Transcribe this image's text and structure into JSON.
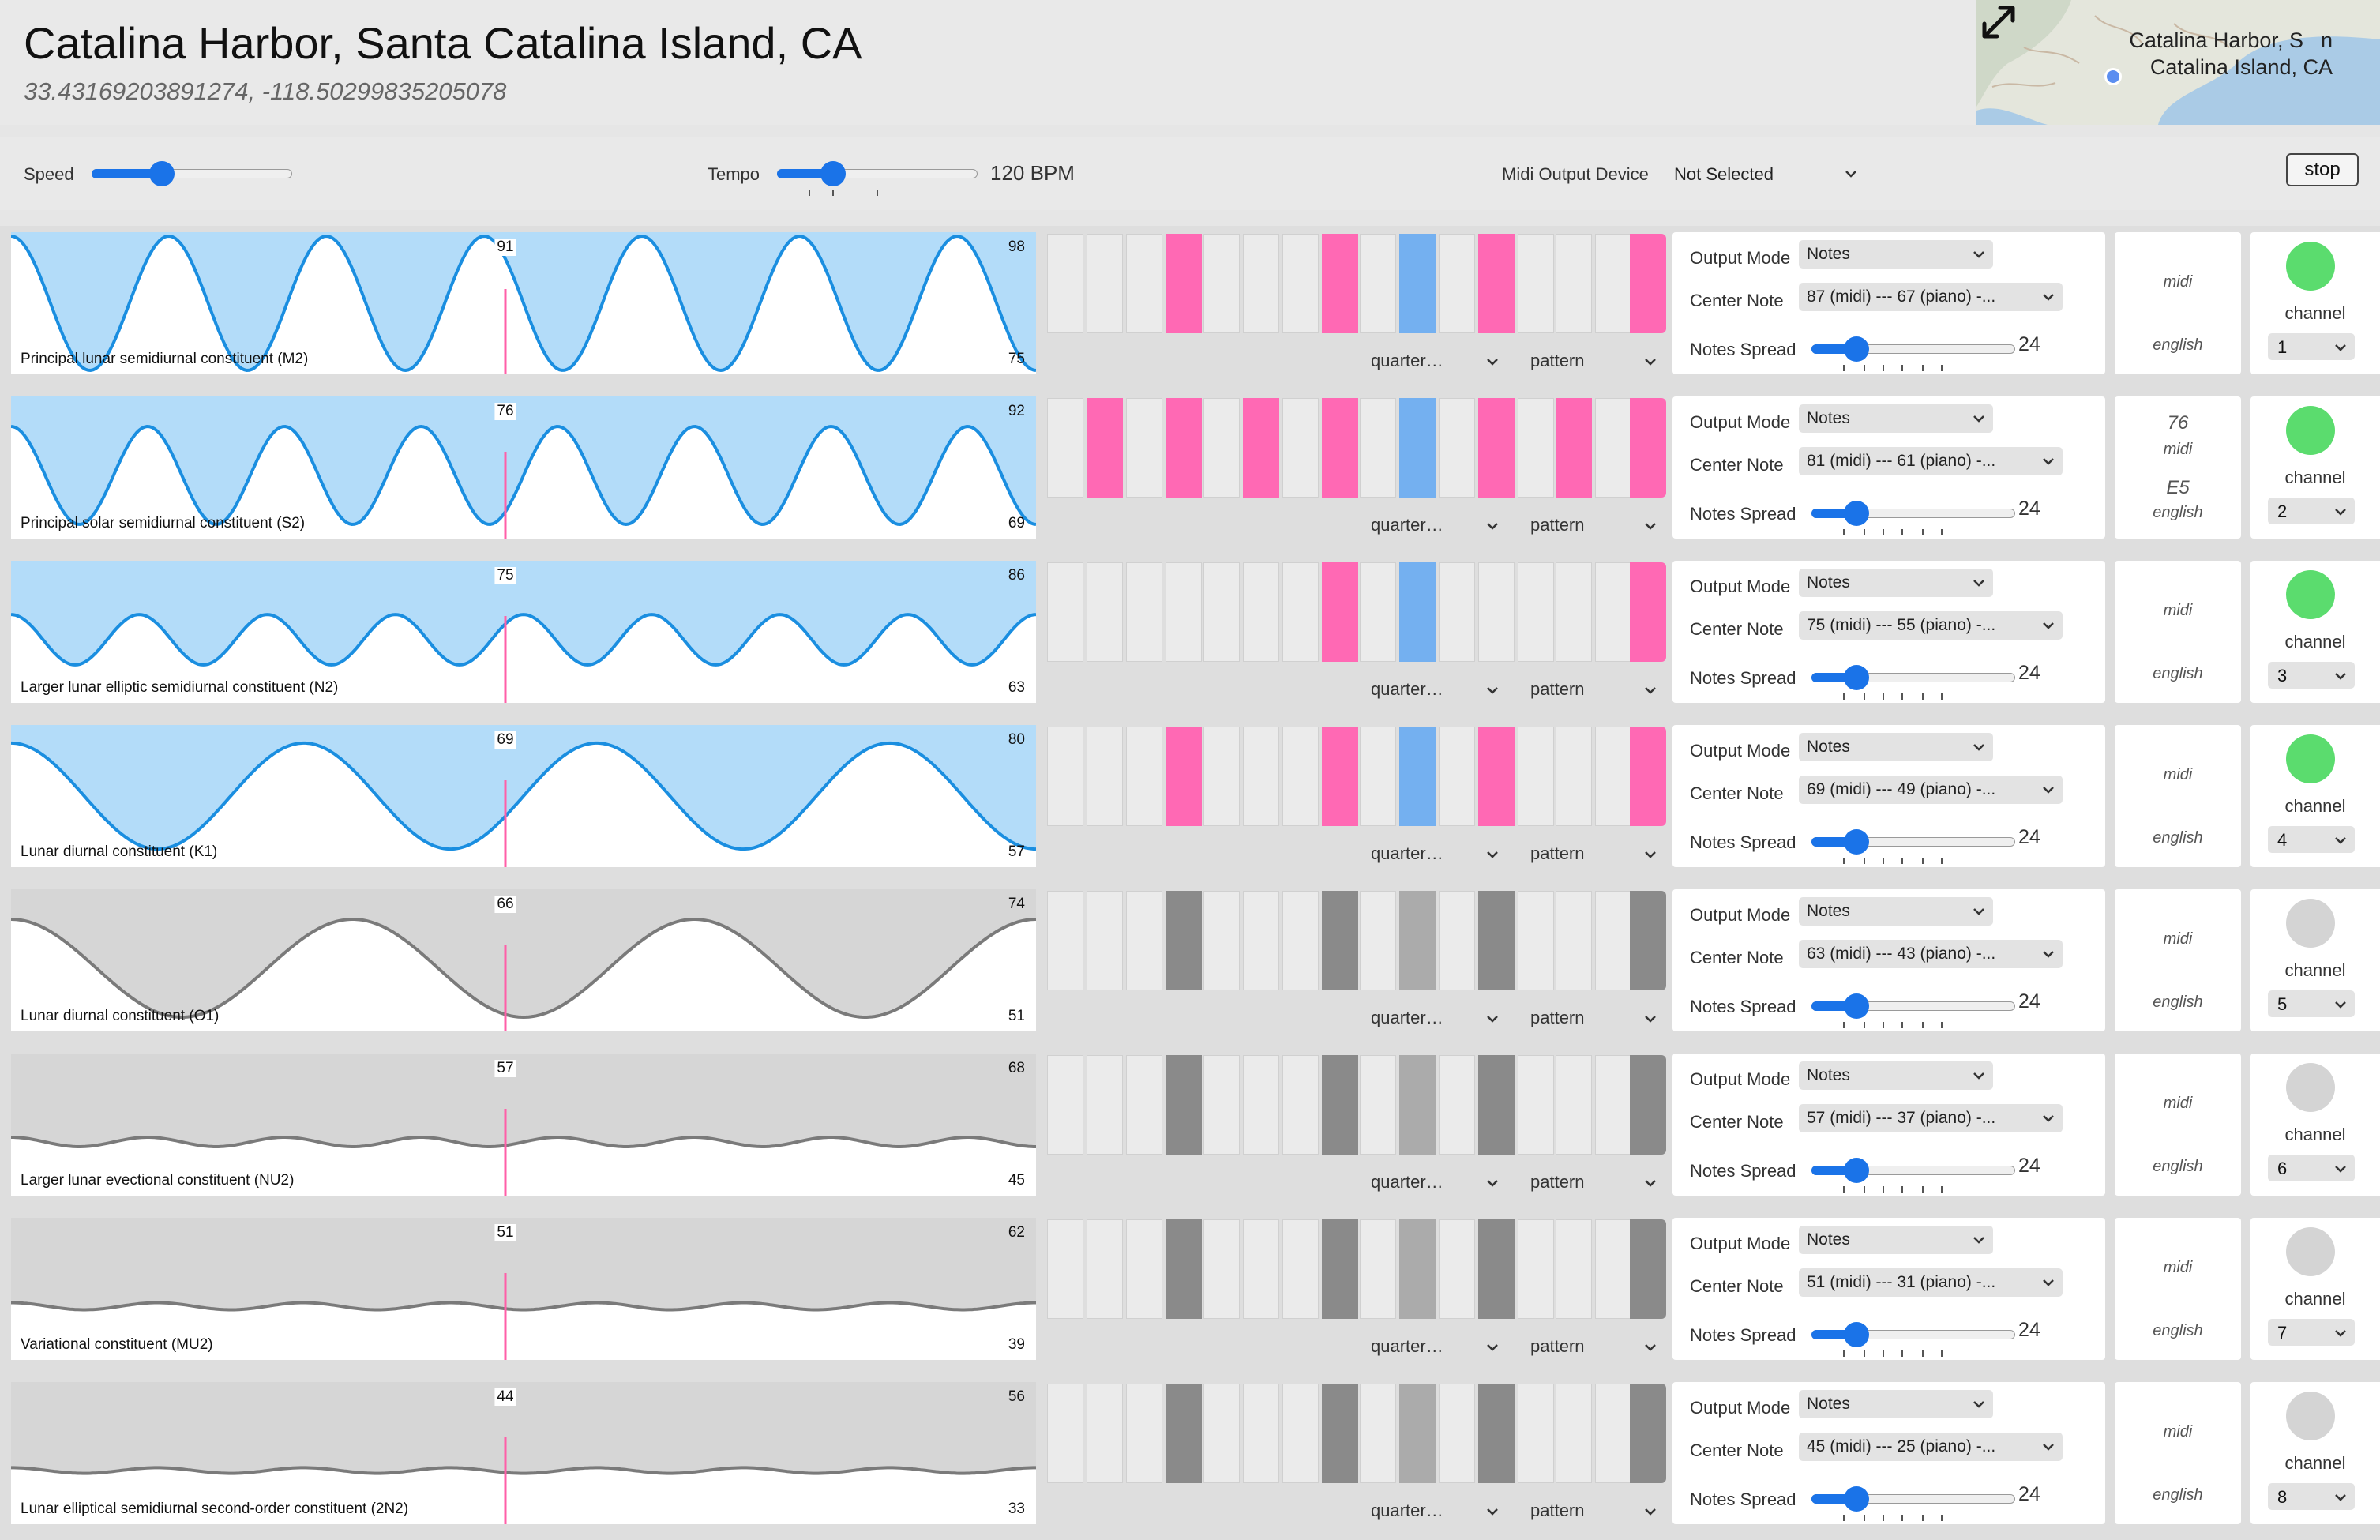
{
  "header": {
    "title": "Catalina Harbor, Santa Catalina Island, CA",
    "coords": "33.43169203891274,  -118.50299835205078",
    "map_label_line1": "Catalina Harbor, S",
    "map_label_line1_tail": "n",
    "map_label_line2": "Catalina Island, CA"
  },
  "toolbar": {
    "speed_label": "Speed",
    "speed_level": 0.35,
    "tempo_label": "Tempo",
    "tempo_level": 0.28,
    "tempo_value": "120 BPM",
    "midi_label": "Midi Output Device",
    "midi_value": "Not Selected",
    "stop_label": "stop"
  },
  "colors": {
    "active_wave": "#b3dcf9",
    "active_line": "#1a8ee0",
    "inactive_wave": "#d6d6d6",
    "inactive_line": "#7a7a7a",
    "playhead": "#ff5fa8",
    "step_on": "#ff69b4",
    "step_current": "#74b0f0",
    "step_on_inactive": "#8a8a8a",
    "step_current_inactive": "#ababab",
    "led_on": "#5bdc6e",
    "led_off": "#d4d4d4"
  },
  "rows": [
    {
      "name": "Principal lunar semidiurnal constituent (M2)",
      "current": "91",
      "max": "98",
      "min": "75",
      "active": true,
      "cycles": 6.5,
      "amplitude": 0.95,
      "center_note": "87 (midi) --- 67 (piano) -...",
      "note_midi": "",
      "note_english": "",
      "channel": "1",
      "steps": [
        0,
        0,
        0,
        1,
        0,
        0,
        0,
        1,
        0,
        2,
        0,
        1,
        0,
        0,
        0,
        1
      ]
    },
    {
      "name": "Principal solar semidiurnal constituent (S2)",
      "current": "76",
      "max": "92",
      "min": "69",
      "active": true,
      "cycles": 7.5,
      "amplitude": 0.35,
      "center_note": "81 (midi) --- 61 (piano) -...",
      "note_midi": "76",
      "note_english": "E5",
      "channel": "2",
      "steps": [
        0,
        1,
        0,
        1,
        0,
        1,
        0,
        1,
        0,
        2,
        0,
        1,
        0,
        1,
        0,
        1
      ]
    },
    {
      "name": "Larger lunar elliptic semidiurnal constituent (N2)",
      "current": "75",
      "max": "86",
      "min": "63",
      "active": true,
      "cycles": 8,
      "amplitude": 0.18,
      "center_note": "75 (midi) --- 55 (piano) -...",
      "note_midi": "",
      "note_english": "",
      "channel": "3",
      "steps": [
        0,
        0,
        0,
        0,
        0,
        0,
        0,
        1,
        0,
        2,
        0,
        0,
        0,
        0,
        0,
        1
      ]
    },
    {
      "name": "Lunar diurnal constituent (K1)",
      "current": "69",
      "max": "80",
      "min": "57",
      "active": true,
      "cycles": 3.5,
      "amplitude": 0.75,
      "center_note": "69 (midi) --- 49 (piano) -...",
      "note_midi": "",
      "note_english": "",
      "channel": "4",
      "steps": [
        0,
        0,
        0,
        1,
        0,
        0,
        0,
        1,
        0,
        2,
        0,
        1,
        0,
        0,
        0,
        1
      ]
    },
    {
      "name": "Lunar diurnal constituent (O1)",
      "current": "66",
      "max": "74",
      "min": "51",
      "active": false,
      "cycles": 3,
      "amplitude": 0.35,
      "center_note": "63 (midi) --- 43 (piano) -...",
      "note_midi": "",
      "note_english": "",
      "channel": "5",
      "steps": [
        0,
        0,
        0,
        1,
        0,
        0,
        0,
        1,
        0,
        2,
        0,
        1,
        0,
        0,
        0,
        1
      ]
    },
    {
      "name": "Larger lunar evectional constituent (NU2)",
      "current": "57",
      "max": "68",
      "min": "45",
      "active": false,
      "cycles": 7.5,
      "amplitude": 0.02,
      "center_note": "57 (midi) --- 37 (piano) -...",
      "note_midi": "",
      "note_english": "",
      "channel": "6",
      "steps": [
        0,
        0,
        0,
        1,
        0,
        0,
        0,
        1,
        0,
        2,
        0,
        1,
        0,
        0,
        0,
        1
      ]
    },
    {
      "name": "Variational constituent (MU2)",
      "current": "51",
      "max": "62",
      "min": "39",
      "active": false,
      "cycles": 7,
      "amplitude": 0.015,
      "center_note": "51 (midi) --- 31 (piano) -...",
      "note_midi": "",
      "note_english": "",
      "channel": "7",
      "steps": [
        0,
        0,
        0,
        1,
        0,
        0,
        0,
        1,
        0,
        2,
        0,
        1,
        0,
        0,
        0,
        1
      ]
    },
    {
      "name": "Lunar elliptical semidiurnal second-order constituent (2N2)",
      "current": "44",
      "max": "56",
      "min": "33",
      "active": false,
      "cycles": 7,
      "amplitude": 0.012,
      "center_note": "45 (midi) --- 25 (piano) -...",
      "note_midi": "",
      "note_english": "",
      "channel": "8",
      "steps": [
        0,
        0,
        0,
        1,
        0,
        0,
        0,
        1,
        0,
        2,
        0,
        1,
        0,
        0,
        0,
        1
      ]
    }
  ],
  "row_common": {
    "duration": "quarter…",
    "pattern": "pattern",
    "output_mode_label": "Output Mode",
    "output_mode_value": "Notes",
    "center_note_label": "Center Note",
    "notes_spread_label": "Notes Spread",
    "notes_spread_value": "24",
    "notes_spread_level": 0.12,
    "midi_caption": "midi",
    "english_caption": "english",
    "channel_label": "channel"
  }
}
